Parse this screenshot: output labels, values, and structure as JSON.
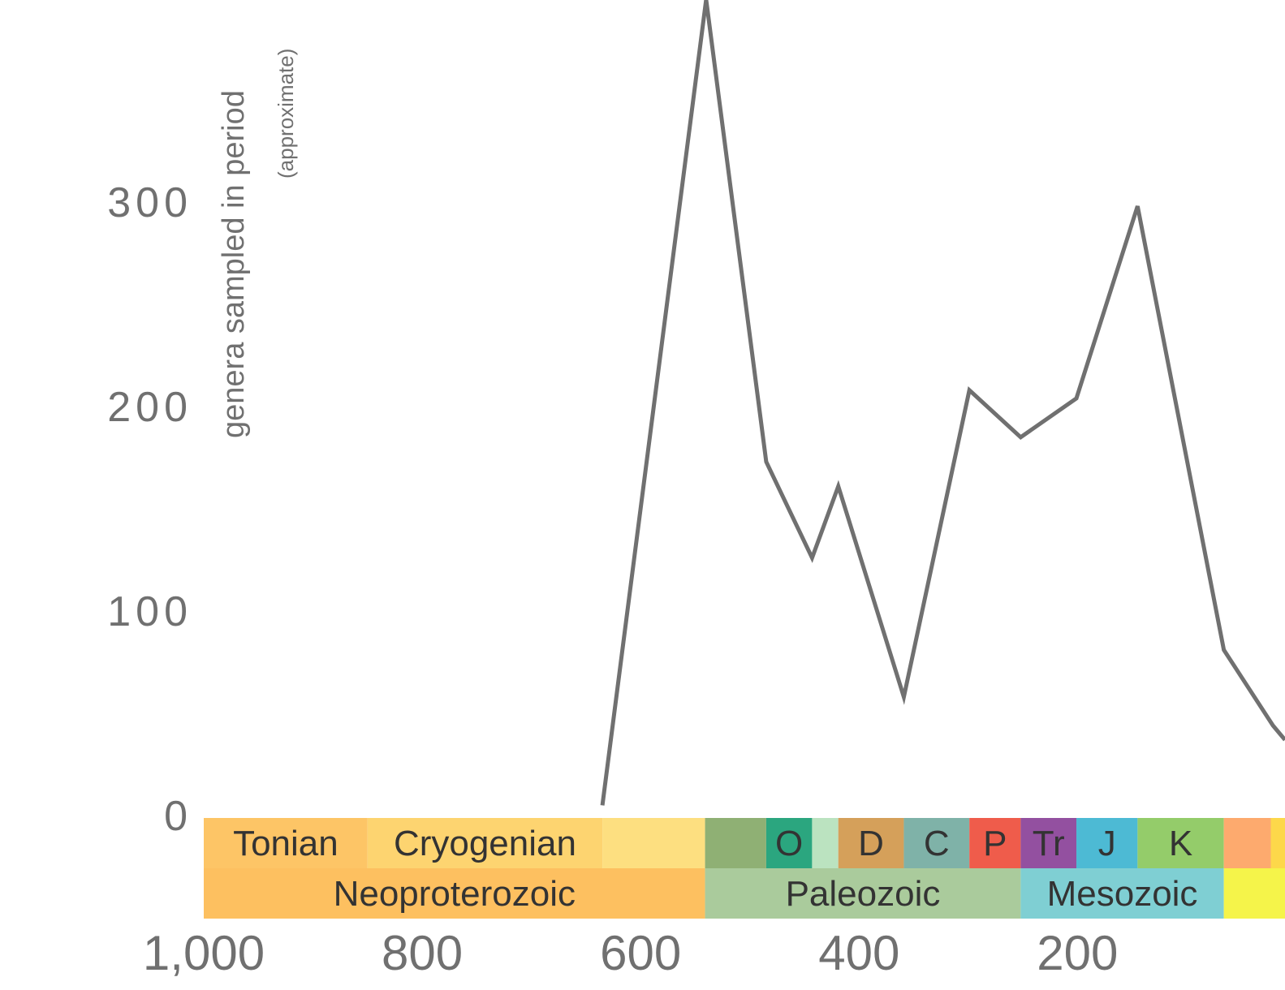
{
  "chart_data": {
    "type": "line",
    "y_label": "genera sampled in period",
    "y_label_note": "(approximate)",
    "x": [
      635,
      540,
      485,
      443,
      419,
      359,
      299,
      252,
      201,
      145,
      66,
      21,
      10
    ],
    "series": [
      {
        "color": "#707070",
        "values": [
          5,
          399,
          173,
          126,
          161,
          58,
          208,
          185,
          204,
          298,
          81,
          44,
          37
        ]
      }
    ],
    "xlim": [
      1000,
      10
    ],
    "ylim": [
      0,
      400
    ],
    "xticks": [
      {
        "value": 1000,
        "label": "1,000"
      },
      800,
      600,
      400,
      200
    ],
    "yticks": [
      0,
      100,
      200,
      300
    ],
    "grid": false,
    "timescale": {
      "periods": [
        {
          "start": 1000,
          "end": 850,
          "color": "#FDC566",
          "label": "Tonian"
        },
        {
          "start": 850,
          "end": 635,
          "color": "#FDD470",
          "label": "Cryogenian"
        },
        {
          "start": 635,
          "end": 541,
          "color": "#FDDF80"
        },
        {
          "start": 541,
          "end": 485,
          "color": "#8FB074"
        },
        {
          "start": 485,
          "end": 443,
          "color": "#2BA67F",
          "label": "O"
        },
        {
          "start": 443,
          "end": 419,
          "color": "#BBE3C0"
        },
        {
          "start": 419,
          "end": 359,
          "color": "#D5A05A",
          "label": "D"
        },
        {
          "start": 359,
          "end": 299,
          "color": "#7FB2A8",
          "label": "C"
        },
        {
          "start": 299,
          "end": 252,
          "color": "#EF5C4B",
          "label": "P"
        },
        {
          "start": 252,
          "end": 201,
          "color": "#9350A0",
          "label": "Tr"
        },
        {
          "start": 201,
          "end": 145,
          "color": "#4DBAD4",
          "label": "J"
        },
        {
          "start": 145,
          "end": 66,
          "color": "#94CC6A",
          "label": "K"
        },
        {
          "start": 66,
          "end": 23,
          "color": "#FDAA6E"
        },
        {
          "start": 23,
          "end": 0,
          "color": "#FDD84A"
        }
      ],
      "eras": [
        {
          "start": 1000,
          "end": 541,
          "color": "#FDC060",
          "label": "Neoproterozoic"
        },
        {
          "start": 541,
          "end": 252,
          "color": "#AACB9C",
          "label": "Paleozoic"
        },
        {
          "start": 252,
          "end": 66,
          "color": "#7FCFD3",
          "label": "Mesozoic"
        },
        {
          "start": 66,
          "end": 0,
          "color": "#F5F44A"
        }
      ]
    }
  }
}
